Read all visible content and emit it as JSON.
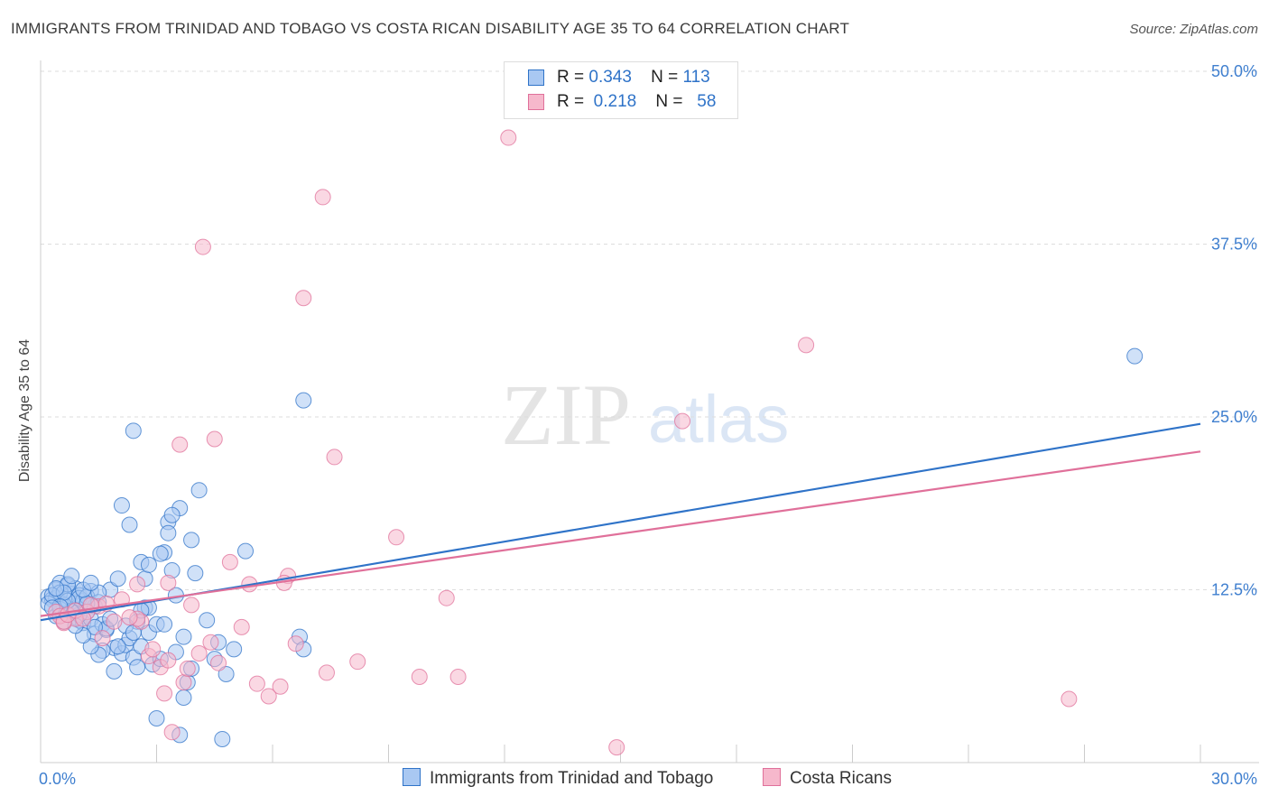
{
  "header": {
    "title": "IMMIGRANTS FROM TRINIDAD AND TOBAGO VS COSTA RICAN DISABILITY AGE 35 TO 64 CORRELATION CHART",
    "source": "Source: ZipAtlas.com"
  },
  "watermark": {
    "part1": "ZIP",
    "part2": "atlas"
  },
  "legend": {
    "r_label": "R =",
    "n_label": "N =",
    "series": [
      {
        "name": "Immigrants from Trinidad and Tobago",
        "r": "0.343",
        "n": "113",
        "fill": "#a9c8f2",
        "stroke": "#2f73c8"
      },
      {
        "name": "Costa Ricans",
        "r": "0.218",
        "n": "58",
        "fill": "#f6b8cc",
        "stroke": "#e0709a"
      }
    ]
  },
  "chart_data": {
    "type": "scatter",
    "title": "IMMIGRANTS FROM TRINIDAD AND TOBAGO VS COSTA RICAN DISABILITY AGE 35 TO 64 CORRELATION CHART",
    "xlabel": "",
    "ylabel": "Disability Age 35 to 64",
    "xlim": [
      0,
      30
    ],
    "ylim": [
      0,
      50
    ],
    "x_tick_labels": [
      "0.0%",
      "30.0%"
    ],
    "y_tick_labels": [
      "12.5%",
      "25.0%",
      "37.5%",
      "50.0%"
    ],
    "y_ticks": [
      12.5,
      25,
      37.5,
      50
    ],
    "series": [
      {
        "name": "Immigrants from Trinidad and Tobago",
        "color": "#2f73c8",
        "fill": "#a9c8f2",
        "trend": {
          "x": [
            0,
            30
          ],
          "y": [
            10.3,
            24.5
          ]
        },
        "points": [
          [
            0.2,
            12
          ],
          [
            0.3,
            11.8
          ],
          [
            0.4,
            12.5
          ],
          [
            0.5,
            13
          ],
          [
            0.6,
            11.5
          ],
          [
            0.7,
            12.8
          ],
          [
            0.8,
            12.2
          ],
          [
            0.9,
            11.6
          ],
          [
            1,
            10.3
          ],
          [
            0.4,
            11.9
          ],
          [
            0.5,
            12.3
          ],
          [
            0.6,
            11.4
          ],
          [
            0.7,
            10.8
          ],
          [
            0.8,
            11
          ],
          [
            0.9,
            12.6
          ],
          [
            1,
            12.1
          ],
          [
            1.1,
            11.7
          ],
          [
            1.2,
            10.9
          ],
          [
            1.3,
            12.4
          ],
          [
            1.4,
            11.3
          ],
          [
            0.2,
            11.5
          ],
          [
            0.3,
            12.1
          ],
          [
            0.4,
            10.6
          ],
          [
            0.5,
            11.1
          ],
          [
            0.6,
            10.2
          ],
          [
            0.7,
            12.9
          ],
          [
            0.8,
            13.5
          ],
          [
            0.9,
            10.5
          ],
          [
            1,
            11.9
          ],
          [
            1.1,
            10.1
          ],
          [
            1.2,
            12
          ],
          [
            1.3,
            10.4
          ],
          [
            1.4,
            9.3
          ],
          [
            1.5,
            11.6
          ],
          [
            1.6,
            10
          ],
          [
            1.7,
            9.6
          ],
          [
            1.8,
            12.5
          ],
          [
            1.9,
            8.3
          ],
          [
            2,
            13.3
          ],
          [
            2.1,
            7.9
          ],
          [
            2.2,
            8.5
          ],
          [
            2.3,
            9
          ],
          [
            2.4,
            7.6
          ],
          [
            2.5,
            10.2
          ],
          [
            2.6,
            8.4
          ],
          [
            2.7,
            11.2
          ],
          [
            2.8,
            9.4
          ],
          [
            2.9,
            7.1
          ],
          [
            3,
            10
          ],
          [
            3.1,
            7.5
          ],
          [
            3.2,
            15.2
          ],
          [
            3.3,
            17.4
          ],
          [
            3.4,
            13.9
          ],
          [
            3.5,
            12.1
          ],
          [
            3.6,
            18.4
          ],
          [
            3.7,
            9.1
          ],
          [
            3.8,
            5.8
          ],
          [
            3.9,
            16.1
          ],
          [
            4,
            13.7
          ],
          [
            4.1,
            19.7
          ],
          [
            4.3,
            10.3
          ],
          [
            4.5,
            7.5
          ],
          [
            4.8,
            6.4
          ],
          [
            5,
            8.2
          ],
          [
            5.3,
            15.3
          ],
          [
            6.7,
            9.1
          ],
          [
            2.3,
            17.2
          ],
          [
            2.4,
            24
          ],
          [
            2.1,
            18.6
          ],
          [
            2.6,
            14.5
          ],
          [
            2.7,
            13.3
          ],
          [
            2.8,
            14.3
          ],
          [
            3.1,
            15.1
          ],
          [
            3.3,
            16.6
          ],
          [
            3.4,
            17.9
          ],
          [
            6.8,
            8.2
          ],
          [
            3.7,
            4.7
          ],
          [
            3.9,
            6.8
          ],
          [
            4.7,
            1.7
          ],
          [
            3.6,
            2
          ],
          [
            3,
            3.2
          ],
          [
            3.2,
            10
          ],
          [
            2.8,
            11.2
          ],
          [
            2.5,
            6.9
          ],
          [
            1.9,
            6.6
          ],
          [
            1.7,
            9.7
          ],
          [
            1.6,
            8.1
          ],
          [
            1.5,
            7.8
          ],
          [
            1.4,
            9.8
          ],
          [
            1.3,
            8.4
          ],
          [
            1.2,
            11.5
          ],
          [
            1.1,
            9.2
          ],
          [
            1.0,
            10.7
          ],
          [
            0.9,
            11
          ],
          [
            0.8,
            10.9
          ],
          [
            0.7,
            11.7
          ],
          [
            0.6,
            12.3
          ],
          [
            0.5,
            11.3
          ],
          [
            0.4,
            12.6
          ],
          [
            0.3,
            11.2
          ],
          [
            6.8,
            26.2
          ],
          [
            28.3,
            29.4
          ],
          [
            1.5,
            12.3
          ],
          [
            2,
            8.4
          ],
          [
            2.2,
            9.9
          ],
          [
            2.4,
            9.4
          ],
          [
            2.6,
            11
          ],
          [
            3.5,
            8
          ],
          [
            1.8,
            10.4
          ],
          [
            1.1,
            12.5
          ],
          [
            0.9,
            9.9
          ],
          [
            1.3,
            13
          ],
          [
            4.6,
            8.7
          ]
        ]
      },
      {
        "name": "Costa Ricans",
        "color": "#e0709a",
        "fill": "#f6b8cc",
        "trend": {
          "x": [
            0,
            30
          ],
          "y": [
            10.6,
            22.5
          ]
        },
        "points": [
          [
            12.1,
            45.2
          ],
          [
            7.3,
            40.9
          ],
          [
            4.2,
            37.3
          ],
          [
            6.8,
            33.6
          ],
          [
            19.8,
            30.2
          ],
          [
            16.6,
            24.7
          ],
          [
            4.5,
            23.4
          ],
          [
            3.6,
            23
          ],
          [
            7.6,
            22.1
          ],
          [
            9.2,
            16.3
          ],
          [
            10.5,
            11.9
          ],
          [
            6.4,
            13.5
          ],
          [
            5.4,
            12.9
          ],
          [
            6.3,
            13
          ],
          [
            4.9,
            14.5
          ],
          [
            3.3,
            13
          ],
          [
            3.9,
            11.4
          ],
          [
            2.6,
            10.2
          ],
          [
            2.5,
            10.4
          ],
          [
            2.1,
            11.8
          ],
          [
            1.5,
            11.3
          ],
          [
            1.2,
            10.9
          ],
          [
            0.9,
            10.4
          ],
          [
            0.6,
            10.1
          ],
          [
            0.4,
            10.9
          ],
          [
            0.5,
            10.6
          ],
          [
            0.6,
            10.2
          ],
          [
            0.7,
            10.7
          ],
          [
            0.9,
            11
          ],
          [
            1.1,
            10.4
          ],
          [
            1.3,
            11.4
          ],
          [
            1.7,
            11.5
          ],
          [
            1.9,
            10.2
          ],
          [
            2.3,
            10.5
          ],
          [
            2.5,
            12.9
          ],
          [
            2.8,
            7.7
          ],
          [
            3.1,
            6.9
          ],
          [
            3.2,
            5
          ],
          [
            3.3,
            7.4
          ],
          [
            3.7,
            5.8
          ],
          [
            3.8,
            6.8
          ],
          [
            4.4,
            8.7
          ],
          [
            4.6,
            7.2
          ],
          [
            5.2,
            9.8
          ],
          [
            5.6,
            5.7
          ],
          [
            5.9,
            4.8
          ],
          [
            6.2,
            5.5
          ],
          [
            6.6,
            8.6
          ],
          [
            7.4,
            6.5
          ],
          [
            8.2,
            7.3
          ],
          [
            9.8,
            6.2
          ],
          [
            10.8,
            6.2
          ],
          [
            14.9,
            1.1
          ],
          [
            26.6,
            4.6
          ],
          [
            3.4,
            2.2
          ],
          [
            4.1,
            7.9
          ],
          [
            2.9,
            8.2
          ],
          [
            1.6,
            9
          ]
        ]
      }
    ]
  }
}
